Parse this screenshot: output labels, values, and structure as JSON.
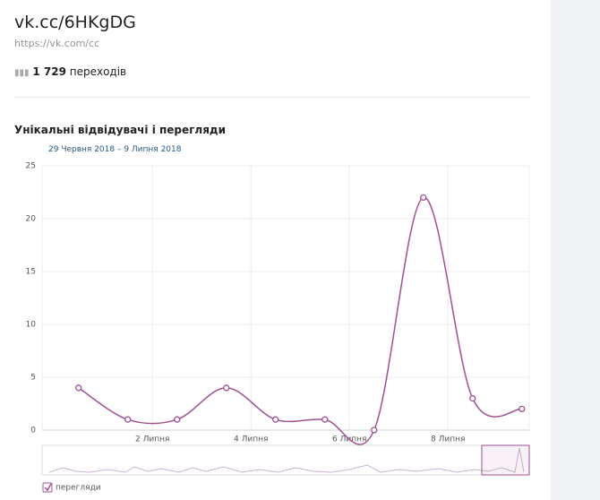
{
  "header": {
    "title": "vk.cc/6HKgDG",
    "url": "https://vk.com/cc",
    "count": "1 729",
    "count_label": "переходів"
  },
  "chart_data": {
    "type": "line",
    "title": "Унікальні відвідувачі і перегляди",
    "subtitle": "29 Червня 2018 – 9 Липня 2018",
    "x": [
      0.5,
      1.5,
      2.5,
      3.5,
      4.5,
      5.5,
      6.5,
      7.5,
      8.5,
      9.5
    ],
    "series": [
      {
        "name": "перегляди",
        "color": "#a0508f",
        "values": [
          4,
          1,
          1,
          4,
          1,
          1,
          0,
          22,
          3,
          2
        ]
      }
    ],
    "xlim": [
      -0.24,
      9.65
    ],
    "xticks": [
      {
        "value": 2,
        "label": "2 Липня"
      },
      {
        "value": 4,
        "label": "4 Липня"
      },
      {
        "value": 6,
        "label": "6 Липня"
      },
      {
        "value": 8,
        "label": "8 Липня"
      }
    ],
    "ylim": [
      0,
      25
    ],
    "yticks": [
      0,
      5,
      10,
      15,
      20,
      25
    ],
    "grid": true,
    "legend": "bottom-left"
  }
}
